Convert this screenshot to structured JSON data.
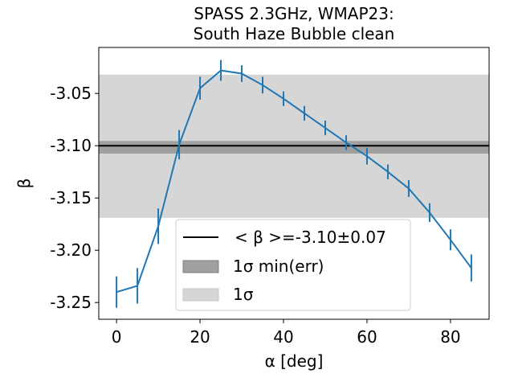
{
  "chart_data": {
    "type": "line",
    "title_line1": "SPASS 2.3GHz, WMAP23:",
    "title_line2": "South Haze Bubble clean",
    "xlabel": "α [deg]",
    "ylabel": "β",
    "xlim": [
      -4.25,
      89.25
    ],
    "ylim": [
      -3.266,
      -3.006
    ],
    "xticks": [
      0,
      20,
      40,
      60,
      80
    ],
    "xtick_labels": [
      "0",
      "20",
      "40",
      "60",
      "80"
    ],
    "yticks": [
      -3.05,
      -3.1,
      -3.15,
      -3.2,
      -3.25
    ],
    "ytick_labels": [
      "-3.05",
      "-3.10",
      "-3.15",
      "-3.20",
      "-3.25"
    ],
    "grid": false,
    "legend_position": "lower-center",
    "mean_beta": -3.1,
    "band_1sigma": [
      -3.169,
      -3.032
    ],
    "band_1sigma_min_err": [
      -3.1075,
      -3.0955
    ],
    "series": [
      {
        "x": [
          0,
          5,
          10,
          15,
          20,
          25,
          30,
          35,
          40,
          45,
          50,
          55,
          60,
          65,
          70,
          75,
          80,
          85
        ],
        "values": [
          -3.24,
          -3.234,
          -3.177,
          -3.099,
          -3.045,
          -3.028,
          -3.031,
          -3.042,
          -3.055,
          -3.069,
          -3.083,
          -3.097,
          -3.11,
          -3.125,
          -3.141,
          -3.164,
          -3.19,
          -3.217
        ],
        "errors": [
          0.015,
          0.017,
          0.017,
          0.014,
          0.011,
          0.01,
          0.008,
          0.008,
          0.007,
          0.007,
          0.007,
          0.007,
          0.008,
          0.007,
          0.008,
          0.009,
          0.01,
          0.013
        ]
      }
    ],
    "legend": [
      {
        "key": "mean",
        "label": "< β >=-3.10±0.07"
      },
      {
        "key": "min_err",
        "label": "1σ min(err)"
      },
      {
        "key": "sigma",
        "label": "1σ"
      }
    ]
  },
  "colors": {
    "series": "#1f77b4",
    "band_1sigma": "#d6d6d6",
    "band_min_err": "#a0a0a0",
    "mean_line": "#000000"
  }
}
